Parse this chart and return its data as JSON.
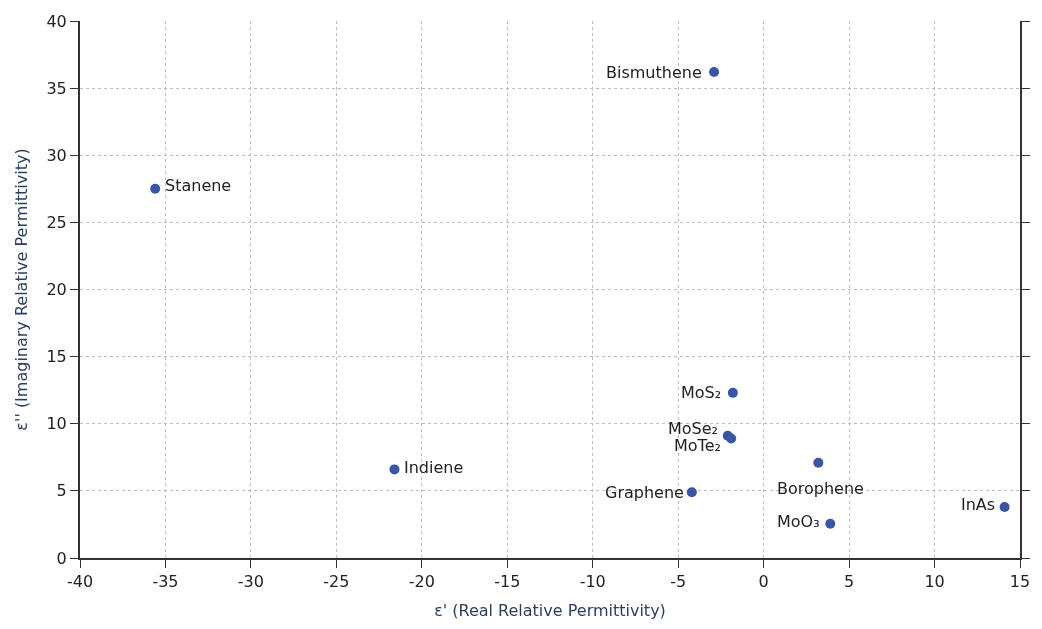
{
  "chart_data": {
    "type": "scatter",
    "xlabel": "ε' (Real Relative Permittivity)",
    "ylabel": "ε'' (Imaginary Relative Permittivity)",
    "x": [
      -35.6,
      -21.6,
      -2.9,
      -1.8,
      -2.1,
      -1.9,
      3.2,
      -4.2,
      3.9,
      14.1
    ],
    "series": [
      {
        "color": "#3a55a4",
        "values": [
          27.5,
          6.6,
          36.2,
          12.3,
          9.1,
          8.9,
          7.1,
          4.9,
          2.55,
          3.8
        ]
      }
    ],
    "annotations": [
      {
        "text": "Stanene",
        "x": -35.6,
        "y": 27.5
      },
      {
        "text": "Indiene",
        "x": -21.6,
        "y": 6.6
      },
      {
        "text": "Bismuthene",
        "x": -2.9,
        "y": 36.2
      },
      {
        "text": "MoS₂",
        "x": -1.8,
        "y": 12.3
      },
      {
        "text": "MoSe₂",
        "x": -2.1,
        "y": 9.1
      },
      {
        "text": "MoTe₂",
        "x": -1.9,
        "y": 8.9
      },
      {
        "text": "Borophene",
        "x": 3.2,
        "y": 7.1
      },
      {
        "text": "Graphene",
        "x": -4.2,
        "y": 4.9
      },
      {
        "text": "MoO₃",
        "x": 3.9,
        "y": 2.55
      },
      {
        "text": "InAs",
        "x": 14.1,
        "y": 3.8
      }
    ],
    "xlim": [
      -40,
      15
    ],
    "xticks": [
      -40,
      -35,
      -30,
      -25,
      -20,
      -15,
      -10,
      -5,
      0,
      5,
      10,
      15
    ],
    "ylim": [
      0,
      40
    ],
    "yticks": [
      0,
      5,
      10,
      15,
      20,
      25,
      30,
      35,
      40
    ],
    "grid": true,
    "marker": "circle"
  }
}
